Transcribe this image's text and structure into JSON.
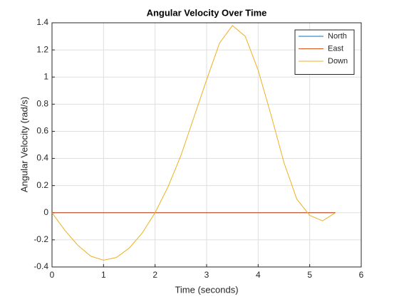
{
  "chart_data": {
    "type": "line",
    "title": "Angular Velocity Over Time",
    "x_label": "Time (seconds)",
    "y_label": "Angular Velocity (rad/s)",
    "x": [
      0,
      0.25,
      0.5,
      0.75,
      1,
      1.25,
      1.5,
      1.75,
      2,
      2.25,
      2.5,
      2.75,
      3,
      3.25,
      3.5,
      3.75,
      4,
      4.25,
      4.5,
      4.75,
      5,
      5.25,
      5.5
    ],
    "series": [
      {
        "name": "North",
        "color": "#0072bd",
        "values": [
          0,
          0,
          0,
          0,
          0,
          0,
          0,
          0,
          0,
          0,
          0,
          0,
          0,
          0,
          0,
          0,
          0,
          0,
          0,
          0,
          0,
          0,
          0
        ]
      },
      {
        "name": "East",
        "color": "#d95319",
        "values": [
          0,
          0,
          0,
          0,
          0,
          0,
          0,
          0,
          0,
          0,
          0,
          0,
          0,
          0,
          0,
          0,
          0,
          0,
          0,
          0,
          0,
          0,
          0
        ]
      },
      {
        "name": "Down",
        "color": "#edb120",
        "values": [
          0,
          -0.13,
          -0.24,
          -0.32,
          -0.35,
          -0.33,
          -0.26,
          -0.15,
          0,
          0.19,
          0.42,
          0.7,
          0.98,
          1.25,
          1.38,
          1.3,
          1.05,
          0.72,
          0.37,
          0.1,
          -0.02,
          -0.06,
          0
        ]
      }
    ],
    "xlim": [
      0,
      6
    ],
    "xticks": [
      0,
      1,
      2,
      3,
      4,
      5,
      6
    ],
    "ylim": [
      -0.4,
      1.4
    ],
    "yticks": [
      -0.4,
      -0.2,
      0,
      0.2,
      0.4,
      0.6,
      0.8,
      1,
      1.2,
      1.4
    ],
    "grid": true,
    "legend": "top-right"
  }
}
